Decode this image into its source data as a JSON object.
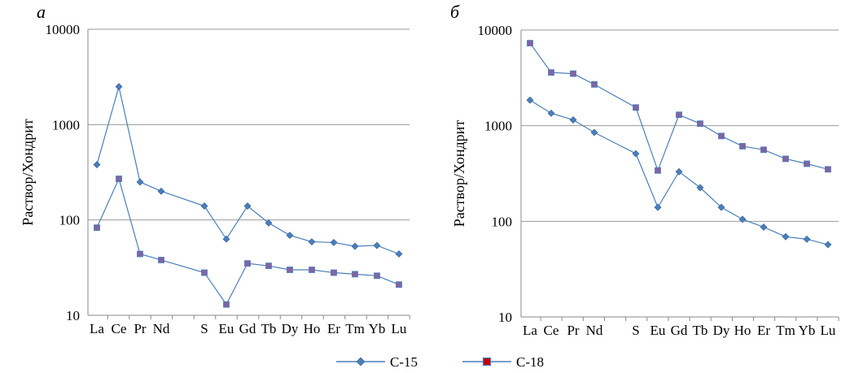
{
  "chart_data": [
    {
      "type": "line",
      "panel_label": "а",
      "yscale": "log",
      "ylim": [
        10,
        10000
      ],
      "ytick_labels": [
        "10",
        "100",
        "1000",
        "10000"
      ],
      "ylabel": "Раствор/Хондрит",
      "categories": [
        "La",
        "Ce",
        "Pr",
        "Nd",
        "",
        "S",
        "Eu",
        "Gd",
        "Tb",
        "Dy",
        "Ho",
        "Er",
        "Tm",
        "Yb",
        "Lu"
      ],
      "series": [
        {
          "name": "С-15",
          "values": [
            380,
            2500,
            250,
            200,
            null,
            140,
            63,
            140,
            93,
            69,
            59,
            58,
            53,
            54,
            44
          ]
        },
        {
          "name": "С-18",
          "values": [
            83,
            270,
            44,
            38,
            null,
            28,
            13,
            35,
            33,
            30,
            30,
            28,
            27,
            26,
            21
          ]
        }
      ]
    },
    {
      "type": "line",
      "panel_label": "б",
      "yscale": "log",
      "ylim": [
        10,
        10000
      ],
      "ytick_labels": [
        "10",
        "100",
        "1000",
        "10000"
      ],
      "ylabel": "Раствор/Хондрит",
      "categories": [
        "La",
        "Ce",
        "Pr",
        "Nd",
        "",
        "S",
        "Eu",
        "Gd",
        "Tb",
        "Dy",
        "Ho",
        "Er",
        "Tm",
        "Yb",
        "Lu"
      ],
      "series": [
        {
          "name": "С-15",
          "values": [
            1850,
            1350,
            1150,
            850,
            null,
            510,
            140,
            330,
            225,
            140,
            105,
            87,
            69,
            65,
            57
          ]
        },
        {
          "name": "С-18",
          "values": [
            7300,
            3600,
            3500,
            2700,
            null,
            1550,
            340,
            1300,
            1050,
            780,
            610,
            560,
            450,
            400,
            350
          ]
        }
      ]
    }
  ],
  "legend": [
    {
      "label": "С-15",
      "line_color": "#4a7ebb",
      "marker_color": "#4a7ebb",
      "marker": "diamond"
    },
    {
      "label": "С-18",
      "line_color": "#4a7ebb",
      "marker_color": "#8064a2",
      "marker": "square"
    }
  ],
  "colors": {
    "gridline": "#999999",
    "axis": "#888888",
    "line": "#4a7ebb",
    "c15_marker": "#4a7ebb",
    "c18_marker": "#8064a2"
  }
}
